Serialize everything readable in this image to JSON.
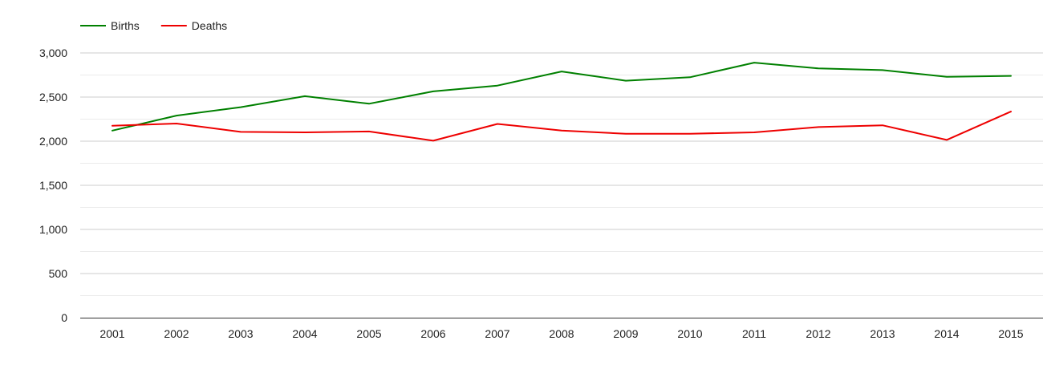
{
  "chart_data": {
    "type": "line",
    "title": "",
    "xlabel": "",
    "ylabel": "",
    "categories": [
      "2001",
      "2002",
      "2003",
      "2004",
      "2005",
      "2006",
      "2007",
      "2008",
      "2009",
      "2010",
      "2011",
      "2012",
      "2013",
      "2014",
      "2015"
    ],
    "series": [
      {
        "name": "Births",
        "color": "#008000",
        "values": [
          2120,
          2290,
          2385,
          2510,
          2425,
          2565,
          2630,
          2790,
          2685,
          2725,
          2890,
          2825,
          2805,
          2730,
          2740
        ]
      },
      {
        "name": "Deaths",
        "color": "#ee0000",
        "values": [
          2175,
          2200,
          2105,
          2100,
          2110,
          2005,
          2195,
          2120,
          2085,
          2085,
          2100,
          2160,
          2180,
          2015,
          2335
        ]
      }
    ],
    "ylim": [
      0,
      3000
    ],
    "yticks": [
      0,
      500,
      1000,
      1500,
      2000,
      2500,
      3000
    ],
    "ytick_labels": [
      "0",
      "500",
      "1,000",
      "1,500",
      "2,000",
      "2,500",
      "3,000"
    ],
    "minor_gridlines": true,
    "grid": true,
    "legend_position": "top-left",
    "gridline_color": "#cccccc",
    "minor_gridline_color": "#ebebeb",
    "axis_color": "#333333",
    "text_color": "#222222"
  }
}
